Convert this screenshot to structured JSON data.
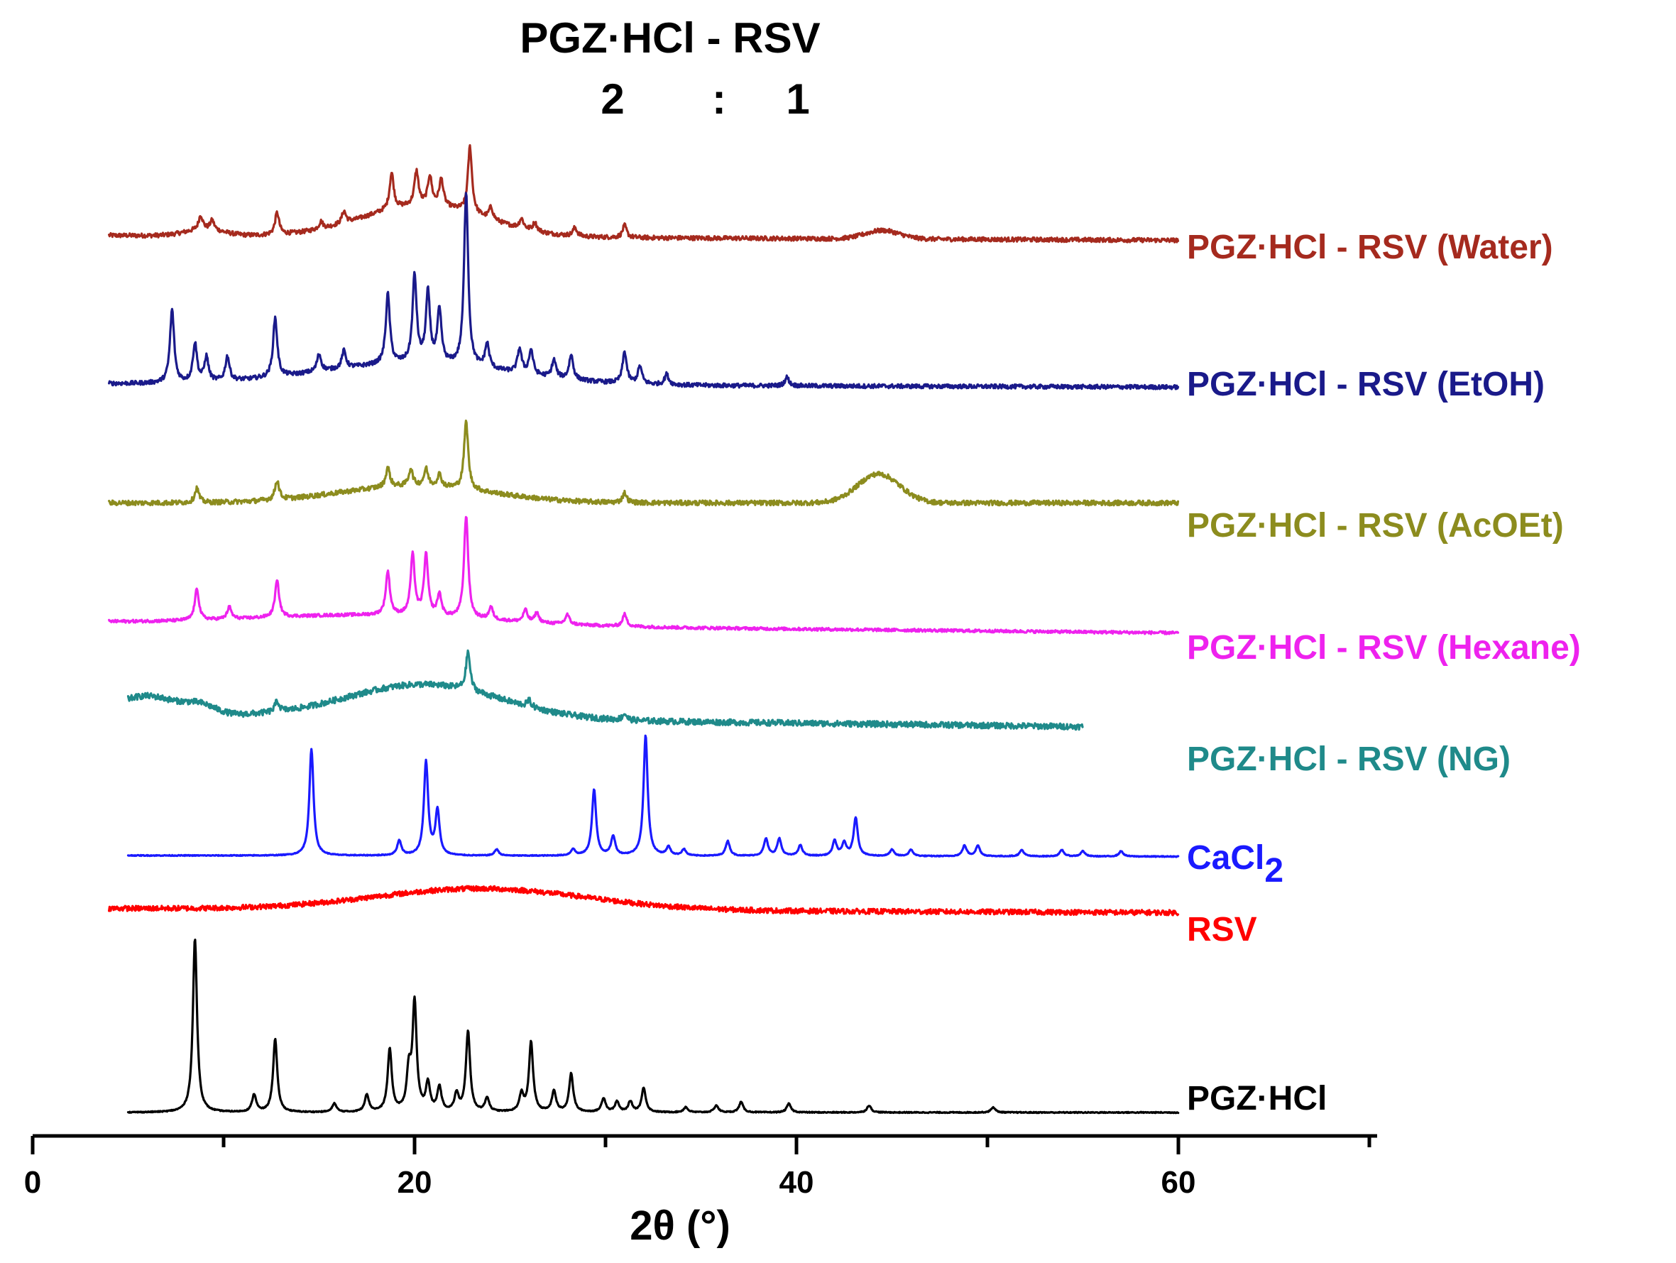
{
  "chart_data": {
    "type": "line",
    "title": {
      "line1": "PGZ·HCl  -  RSV",
      "ratio_left": "2",
      "ratio_sep": ":",
      "ratio_right": "1"
    },
    "xlabel": "2θ (°)",
    "ylabel": "",
    "xlim": [
      0,
      70
    ],
    "xticks": [
      {
        "value": 0,
        "label": "0"
      },
      {
        "value": 20,
        "label": "20"
      },
      {
        "value": 40,
        "label": "40"
      },
      {
        "value": 60,
        "label": "60"
      }
    ],
    "y_axis_shown": false,
    "offset_stacked": true,
    "series": [
      {
        "name": "PGZ·HCl - RSV (Water)",
        "label": "PGZ·HCl - RSV (Water)",
        "color": "#a52a1e",
        "x_range": [
          4,
          60
        ],
        "baseline": 0.12,
        "slope": -0.04,
        "noise": 0.018,
        "humps": [
          {
            "x": 20.5,
            "h": 0.26,
            "w": 3.2
          },
          {
            "x": 44.5,
            "h": 0.07,
            "w": 0.9
          },
          {
            "x": 9,
            "h": 0.05,
            "w": 1.0
          }
        ],
        "peaks": [
          {
            "x": 8.8,
            "h": 0.12
          },
          {
            "x": 9.4,
            "h": 0.08
          },
          {
            "x": 12.8,
            "h": 0.18
          },
          {
            "x": 15.1,
            "h": 0.06
          },
          {
            "x": 16.3,
            "h": 0.1
          },
          {
            "x": 18.8,
            "h": 0.3
          },
          {
            "x": 20.1,
            "h": 0.28
          },
          {
            "x": 20.8,
            "h": 0.24
          },
          {
            "x": 21.4,
            "h": 0.22
          },
          {
            "x": 22.9,
            "h": 0.55
          },
          {
            "x": 24.0,
            "h": 0.1
          },
          {
            "x": 25.6,
            "h": 0.08
          },
          {
            "x": 26.3,
            "h": 0.07
          },
          {
            "x": 28.4,
            "h": 0.07
          },
          {
            "x": 31.0,
            "h": 0.1
          }
        ]
      },
      {
        "name": "PGZ·HCl - RSV  (EtOH)",
        "label": "PGZ·HCl - RSV  (EtOH)",
        "color": "#1a1a8a",
        "x_range": [
          4,
          60
        ],
        "baseline": 0.08,
        "slope": -0.02,
        "noise": 0.012,
        "humps": [
          {
            "x": 20.0,
            "h": 0.12,
            "w": 5.0
          }
        ],
        "peaks": [
          {
            "x": 7.3,
            "h": 0.42
          },
          {
            "x": 8.5,
            "h": 0.22
          },
          {
            "x": 9.1,
            "h": 0.14
          },
          {
            "x": 10.2,
            "h": 0.14
          },
          {
            "x": 12.7,
            "h": 0.34
          },
          {
            "x": 15.0,
            "h": 0.1
          },
          {
            "x": 16.3,
            "h": 0.1
          },
          {
            "x": 18.6,
            "h": 0.4
          },
          {
            "x": 20.0,
            "h": 0.5
          },
          {
            "x": 20.7,
            "h": 0.4
          },
          {
            "x": 21.3,
            "h": 0.3
          },
          {
            "x": 22.7,
            "h": 1.0
          },
          {
            "x": 23.8,
            "h": 0.14
          },
          {
            "x": 25.5,
            "h": 0.14
          },
          {
            "x": 26.1,
            "h": 0.14
          },
          {
            "x": 27.3,
            "h": 0.1
          },
          {
            "x": 28.2,
            "h": 0.14
          },
          {
            "x": 31.0,
            "h": 0.18
          },
          {
            "x": 31.8,
            "h": 0.1
          },
          {
            "x": 33.2,
            "h": 0.06
          },
          {
            "x": 39.5,
            "h": 0.05
          }
        ]
      },
      {
        "name": "PGZ·HCl - RSV (AcOEt)",
        "label": "PGZ·HCl - RSV (AcOEt)",
        "color": "#8c8c1e",
        "x_range": [
          4,
          60
        ],
        "baseline": 0.08,
        "slope": 0.0,
        "noise": 0.02,
        "humps": [
          {
            "x": 20.0,
            "h": 0.14,
            "w": 4.0
          },
          {
            "x": 44.3,
            "h": 0.24,
            "w": 1.1
          }
        ],
        "peaks": [
          {
            "x": 8.6,
            "h": 0.12
          },
          {
            "x": 12.8,
            "h": 0.16
          },
          {
            "x": 18.6,
            "h": 0.16
          },
          {
            "x": 19.8,
            "h": 0.14
          },
          {
            "x": 20.6,
            "h": 0.14
          },
          {
            "x": 21.3,
            "h": 0.1
          },
          {
            "x": 22.7,
            "h": 0.56
          },
          {
            "x": 31.0,
            "h": 0.08
          }
        ]
      },
      {
        "name": "PGZ·HCl - RSV  (Hexane)",
        "label": "PGZ·HCl - RSV  (Hexane)",
        "color": "#ee22ee",
        "x_range": [
          4,
          60
        ],
        "baseline": 0.14,
        "slope": -0.09,
        "noise": 0.012,
        "humps": [
          {
            "x": 18.0,
            "h": 0.08,
            "w": 6.0
          }
        ],
        "peaks": [
          {
            "x": 8.6,
            "h": 0.26
          },
          {
            "x": 10.3,
            "h": 0.1
          },
          {
            "x": 12.8,
            "h": 0.3
          },
          {
            "x": 18.6,
            "h": 0.36
          },
          {
            "x": 19.9,
            "h": 0.5
          },
          {
            "x": 20.6,
            "h": 0.5
          },
          {
            "x": 21.3,
            "h": 0.18
          },
          {
            "x": 22.7,
            "h": 0.85
          },
          {
            "x": 24.0,
            "h": 0.1
          },
          {
            "x": 25.8,
            "h": 0.1
          },
          {
            "x": 26.4,
            "h": 0.08
          },
          {
            "x": 28.0,
            "h": 0.08
          },
          {
            "x": 31.0,
            "h": 0.1
          }
        ]
      },
      {
        "name": "PGZ·HCl - RSV (NG)",
        "label": "PGZ·HCl - RSV (NG)",
        "color": "#1f8a8a",
        "x_range": [
          5,
          55
        ],
        "baseline": 0.12,
        "slope": -0.11,
        "noise": 0.028,
        "humps": [
          {
            "x": 6.0,
            "h": 0.18,
            "w": 1.6
          },
          {
            "x": 20.5,
            "h": 0.32,
            "w": 4.0
          },
          {
            "x": 8.8,
            "h": 0.08,
            "w": 0.8
          }
        ],
        "peaks": [
          {
            "x": 12.8,
            "h": 0.1
          },
          {
            "x": 22.8,
            "h": 0.36
          },
          {
            "x": 26.0,
            "h": 0.06
          },
          {
            "x": 31.0,
            "h": 0.06
          }
        ]
      },
      {
        "name": "CaCl2",
        "label": "CaCl",
        "label_sub": "2",
        "color": "#1a1aff",
        "x_range": [
          5,
          60
        ],
        "baseline": 0.02,
        "slope": -0.01,
        "noise": 0.004,
        "humps": [],
        "peaks": [
          {
            "x": 14.6,
            "h": 1.0
          },
          {
            "x": 19.2,
            "h": 0.14
          },
          {
            "x": 20.6,
            "h": 0.88
          },
          {
            "x": 21.2,
            "h": 0.42
          },
          {
            "x": 24.3,
            "h": 0.06
          },
          {
            "x": 28.3,
            "h": 0.06
          },
          {
            "x": 29.4,
            "h": 0.62
          },
          {
            "x": 30.4,
            "h": 0.18
          },
          {
            "x": 32.1,
            "h": 1.13
          },
          {
            "x": 33.3,
            "h": 0.08
          },
          {
            "x": 34.1,
            "h": 0.06
          },
          {
            "x": 36.4,
            "h": 0.14
          },
          {
            "x": 38.4,
            "h": 0.16
          },
          {
            "x": 39.1,
            "h": 0.16
          },
          {
            "x": 40.2,
            "h": 0.1
          },
          {
            "x": 42.0,
            "h": 0.14
          },
          {
            "x": 42.5,
            "h": 0.12
          },
          {
            "x": 43.1,
            "h": 0.36
          },
          {
            "x": 45.0,
            "h": 0.06
          },
          {
            "x": 46.0,
            "h": 0.06
          },
          {
            "x": 48.8,
            "h": 0.1
          },
          {
            "x": 49.5,
            "h": 0.1
          },
          {
            "x": 51.8,
            "h": 0.06
          },
          {
            "x": 53.9,
            "h": 0.06
          },
          {
            "x": 55.0,
            "h": 0.05
          },
          {
            "x": 57.0,
            "h": 0.05
          }
        ]
      },
      {
        "name": "RSV",
        "label": "RSV",
        "color": "#ff0000",
        "x_range": [
          4,
          60
        ],
        "baseline": 0.03,
        "slope": -0.04,
        "noise": 0.024,
        "humps": [
          {
            "x": 23.5,
            "h": 0.2,
            "w": 5.5
          }
        ],
        "peaks": []
      },
      {
        "name": "PGZ·HCl",
        "label": "PGZ·HCl",
        "color": "#000000",
        "x_range": [
          5,
          60
        ],
        "baseline": 0.0,
        "slope": 0.0,
        "noise": 0.003,
        "humps": [],
        "peaks": [
          {
            "x": 8.5,
            "h": 1.0
          },
          {
            "x": 11.6,
            "h": 0.1
          },
          {
            "x": 12.7,
            "h": 0.42
          },
          {
            "x": 15.8,
            "h": 0.05
          },
          {
            "x": 17.5,
            "h": 0.1
          },
          {
            "x": 18.7,
            "h": 0.36
          },
          {
            "x": 19.7,
            "h": 0.22
          },
          {
            "x": 20.0,
            "h": 0.62
          },
          {
            "x": 20.7,
            "h": 0.16
          },
          {
            "x": 21.3,
            "h": 0.14
          },
          {
            "x": 22.2,
            "h": 0.1
          },
          {
            "x": 22.8,
            "h": 0.46
          },
          {
            "x": 23.8,
            "h": 0.08
          },
          {
            "x": 25.6,
            "h": 0.1
          },
          {
            "x": 26.1,
            "h": 0.4
          },
          {
            "x": 27.3,
            "h": 0.12
          },
          {
            "x": 28.2,
            "h": 0.22
          },
          {
            "x": 29.9,
            "h": 0.08
          },
          {
            "x": 30.6,
            "h": 0.06
          },
          {
            "x": 31.3,
            "h": 0.06
          },
          {
            "x": 32.0,
            "h": 0.14
          },
          {
            "x": 34.2,
            "h": 0.03
          },
          {
            "x": 35.8,
            "h": 0.04
          },
          {
            "x": 37.1,
            "h": 0.06
          },
          {
            "x": 39.6,
            "h": 0.05
          },
          {
            "x": 43.8,
            "h": 0.04
          },
          {
            "x": 50.3,
            "h": 0.03
          }
        ]
      }
    ]
  }
}
